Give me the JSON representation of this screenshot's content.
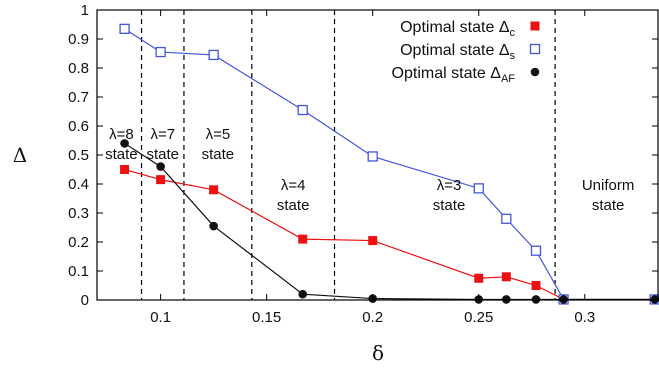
{
  "chart_data": {
    "type": "line",
    "title": "",
    "xlabel": "δ",
    "ylabel": "Δ",
    "xlim": [
      0.07,
      0.335
    ],
    "ylim": [
      0,
      1
    ],
    "x_ticks": [
      "0.1",
      "0.15",
      "0.2",
      "0.25",
      "0.3"
    ],
    "x_tick_values": [
      0.1,
      0.15,
      0.2,
      0.25,
      0.3
    ],
    "y_ticks": [
      "0",
      "0.1",
      "0.2",
      "0.3",
      "0.4",
      "0.5",
      "0.6",
      "0.7",
      "0.8",
      "0.9",
      "1"
    ],
    "y_tick_values": [
      0,
      0.1,
      0.2,
      0.3,
      0.4,
      0.5,
      0.6,
      0.7,
      0.8,
      0.9,
      1.0
    ],
    "legend_position": "top-right",
    "series": [
      {
        "name": "Optimal state Δc",
        "legend_main": "Optimal state Δ",
        "legend_sub": "c",
        "color": "#ee1111",
        "marker": "filled-square",
        "x": [
          0.083,
          0.1,
          0.125,
          0.167,
          0.2,
          0.25,
          0.263,
          0.277,
          0.29,
          0.333
        ],
        "y": [
          0.45,
          0.415,
          0.38,
          0.21,
          0.205,
          0.075,
          0.08,
          0.05,
          0.002,
          0.002
        ]
      },
      {
        "name": "Optimal state Δs",
        "legend_main": "Optimal state Δ",
        "legend_sub": "s",
        "color": "#4455dd",
        "marker": "open-square",
        "x": [
          0.083,
          0.1,
          0.125,
          0.167,
          0.2,
          0.25,
          0.263,
          0.277,
          0.29,
          0.333
        ],
        "y": [
          0.935,
          0.855,
          0.845,
          0.655,
          0.495,
          0.385,
          0.28,
          0.17,
          0.002,
          0.002
        ]
      },
      {
        "name": "Optimal state ΔAF",
        "legend_main": "Optimal state Δ",
        "legend_sub": "AF",
        "color": "#111111",
        "marker": "filled-circle",
        "x": [
          0.083,
          0.1,
          0.125,
          0.167,
          0.2,
          0.25,
          0.263,
          0.277,
          0.29,
          0.333
        ],
        "y": [
          0.54,
          0.46,
          0.255,
          0.02,
          0.005,
          0.002,
          0.002,
          0.002,
          0.002,
          0.002
        ]
      }
    ],
    "boundaries": [
      0.091,
      0.111,
      0.143,
      0.182,
      0.286
    ],
    "regions": [
      {
        "lines": [
          "λ=8",
          "state"
        ],
        "x": 0.0815,
        "y": 0.555
      },
      {
        "lines": [
          "λ=7",
          "state"
        ],
        "x": 0.101,
        "y": 0.555
      },
      {
        "lines": [
          "λ=5",
          "state"
        ],
        "x": 0.127,
        "y": 0.555
      },
      {
        "lines": [
          "λ=4",
          "state"
        ],
        "x": 0.1625,
        "y": 0.38
      },
      {
        "lines": [
          "λ=3",
          "state"
        ],
        "x": 0.236,
        "y": 0.38
      },
      {
        "lines": [
          "Uniform",
          "state"
        ],
        "x": 0.311,
        "y": 0.38
      }
    ]
  }
}
